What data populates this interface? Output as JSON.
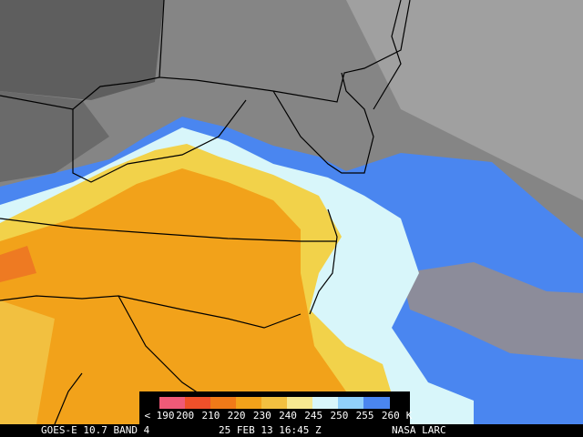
{
  "colorbar": {
    "labels": [
      "< 190",
      "200",
      "210",
      "220",
      "230",
      "240",
      "245",
      "250",
      "255",
      "260"
    ],
    "unit": "K"
  },
  "footer": {
    "satellite": "GOES-E 10.7 BAND 4",
    "time": "25 FEB 13 16:45 Z",
    "source": "NASA LARC"
  }
}
